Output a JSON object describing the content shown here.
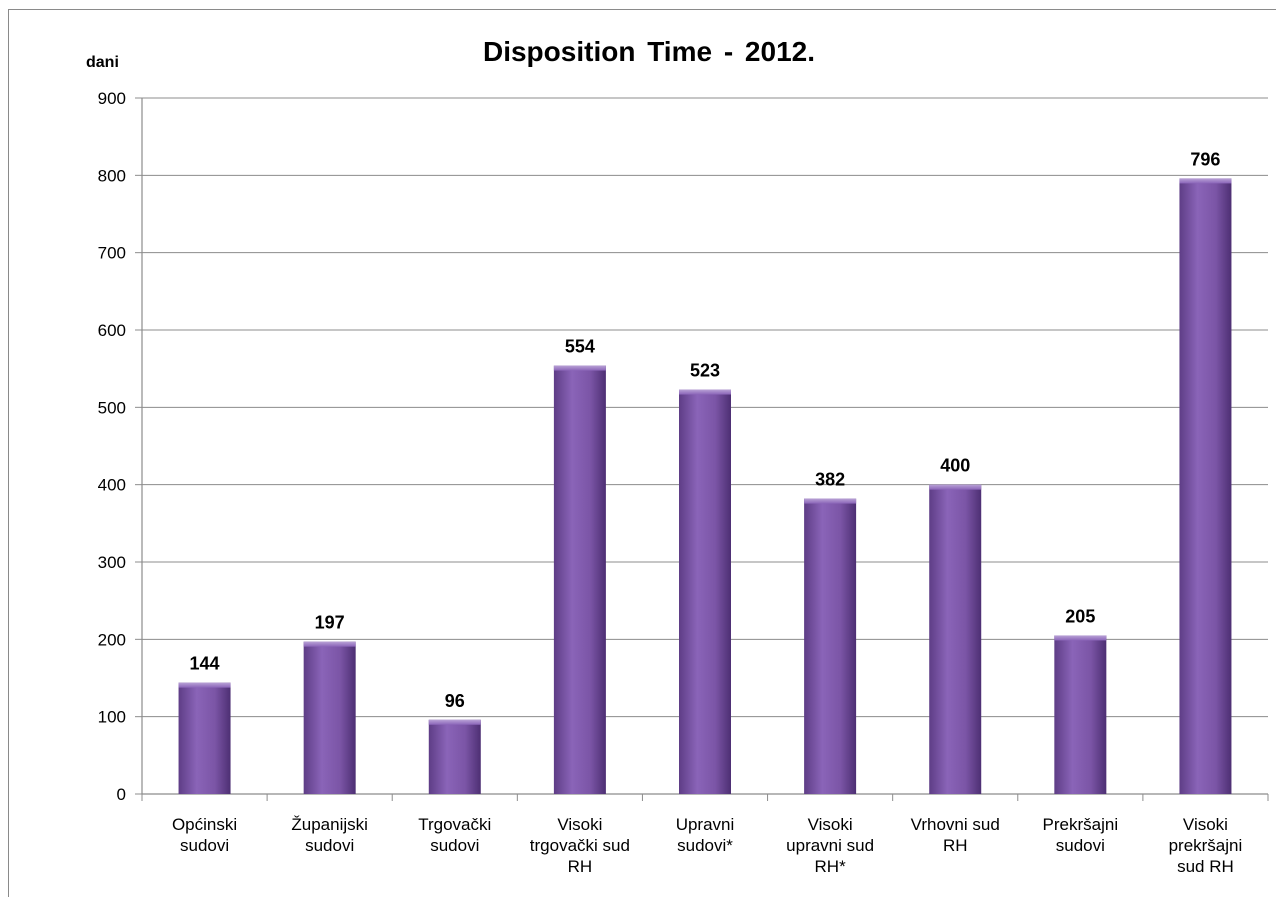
{
  "chart_data": {
    "type": "bar",
    "title": "Disposition  Time - 2012.",
    "ylabel": "dani",
    "xlabel": "",
    "ylim": [
      0,
      900
    ],
    "yticks": [
      0,
      100,
      200,
      300,
      400,
      500,
      600,
      700,
      800,
      900
    ],
    "grid": true,
    "categories": [
      [
        "Općinski",
        "sudovi"
      ],
      [
        "Županijski",
        "sudovi"
      ],
      [
        "Trgovački",
        "sudovi"
      ],
      [
        "Visoki",
        "trgovački sud",
        "RH"
      ],
      [
        "Upravni",
        "sudovi*"
      ],
      [
        "Visoki",
        "upravni sud",
        "RH*"
      ],
      [
        "Vrhovni sud",
        "RH"
      ],
      [
        "Prekršajni",
        "sudovi"
      ],
      [
        "Visoki",
        "prekršajni",
        "sud RH"
      ]
    ],
    "values": [
      144,
      197,
      96,
      554,
      523,
      382,
      400,
      205,
      796
    ],
    "bar_color": "#7f5aa8"
  }
}
